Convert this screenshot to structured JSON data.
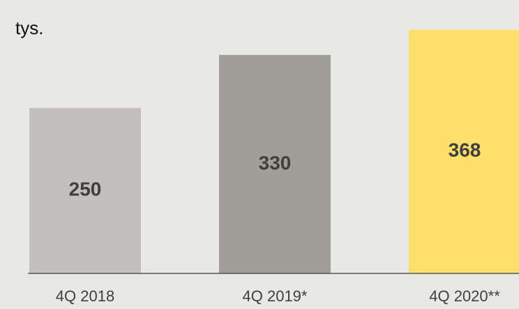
{
  "chart_data": {
    "type": "bar",
    "unit_label": "tys.",
    "categories": [
      "4Q 2018",
      "4Q 2019*",
      "4Q 2020**"
    ],
    "values": [
      250,
      330,
      368
    ],
    "colors": [
      "#c1c0bc",
      "#a09f97",
      "#fde06b"
    ],
    "ylim": [
      0,
      413
    ]
  }
}
